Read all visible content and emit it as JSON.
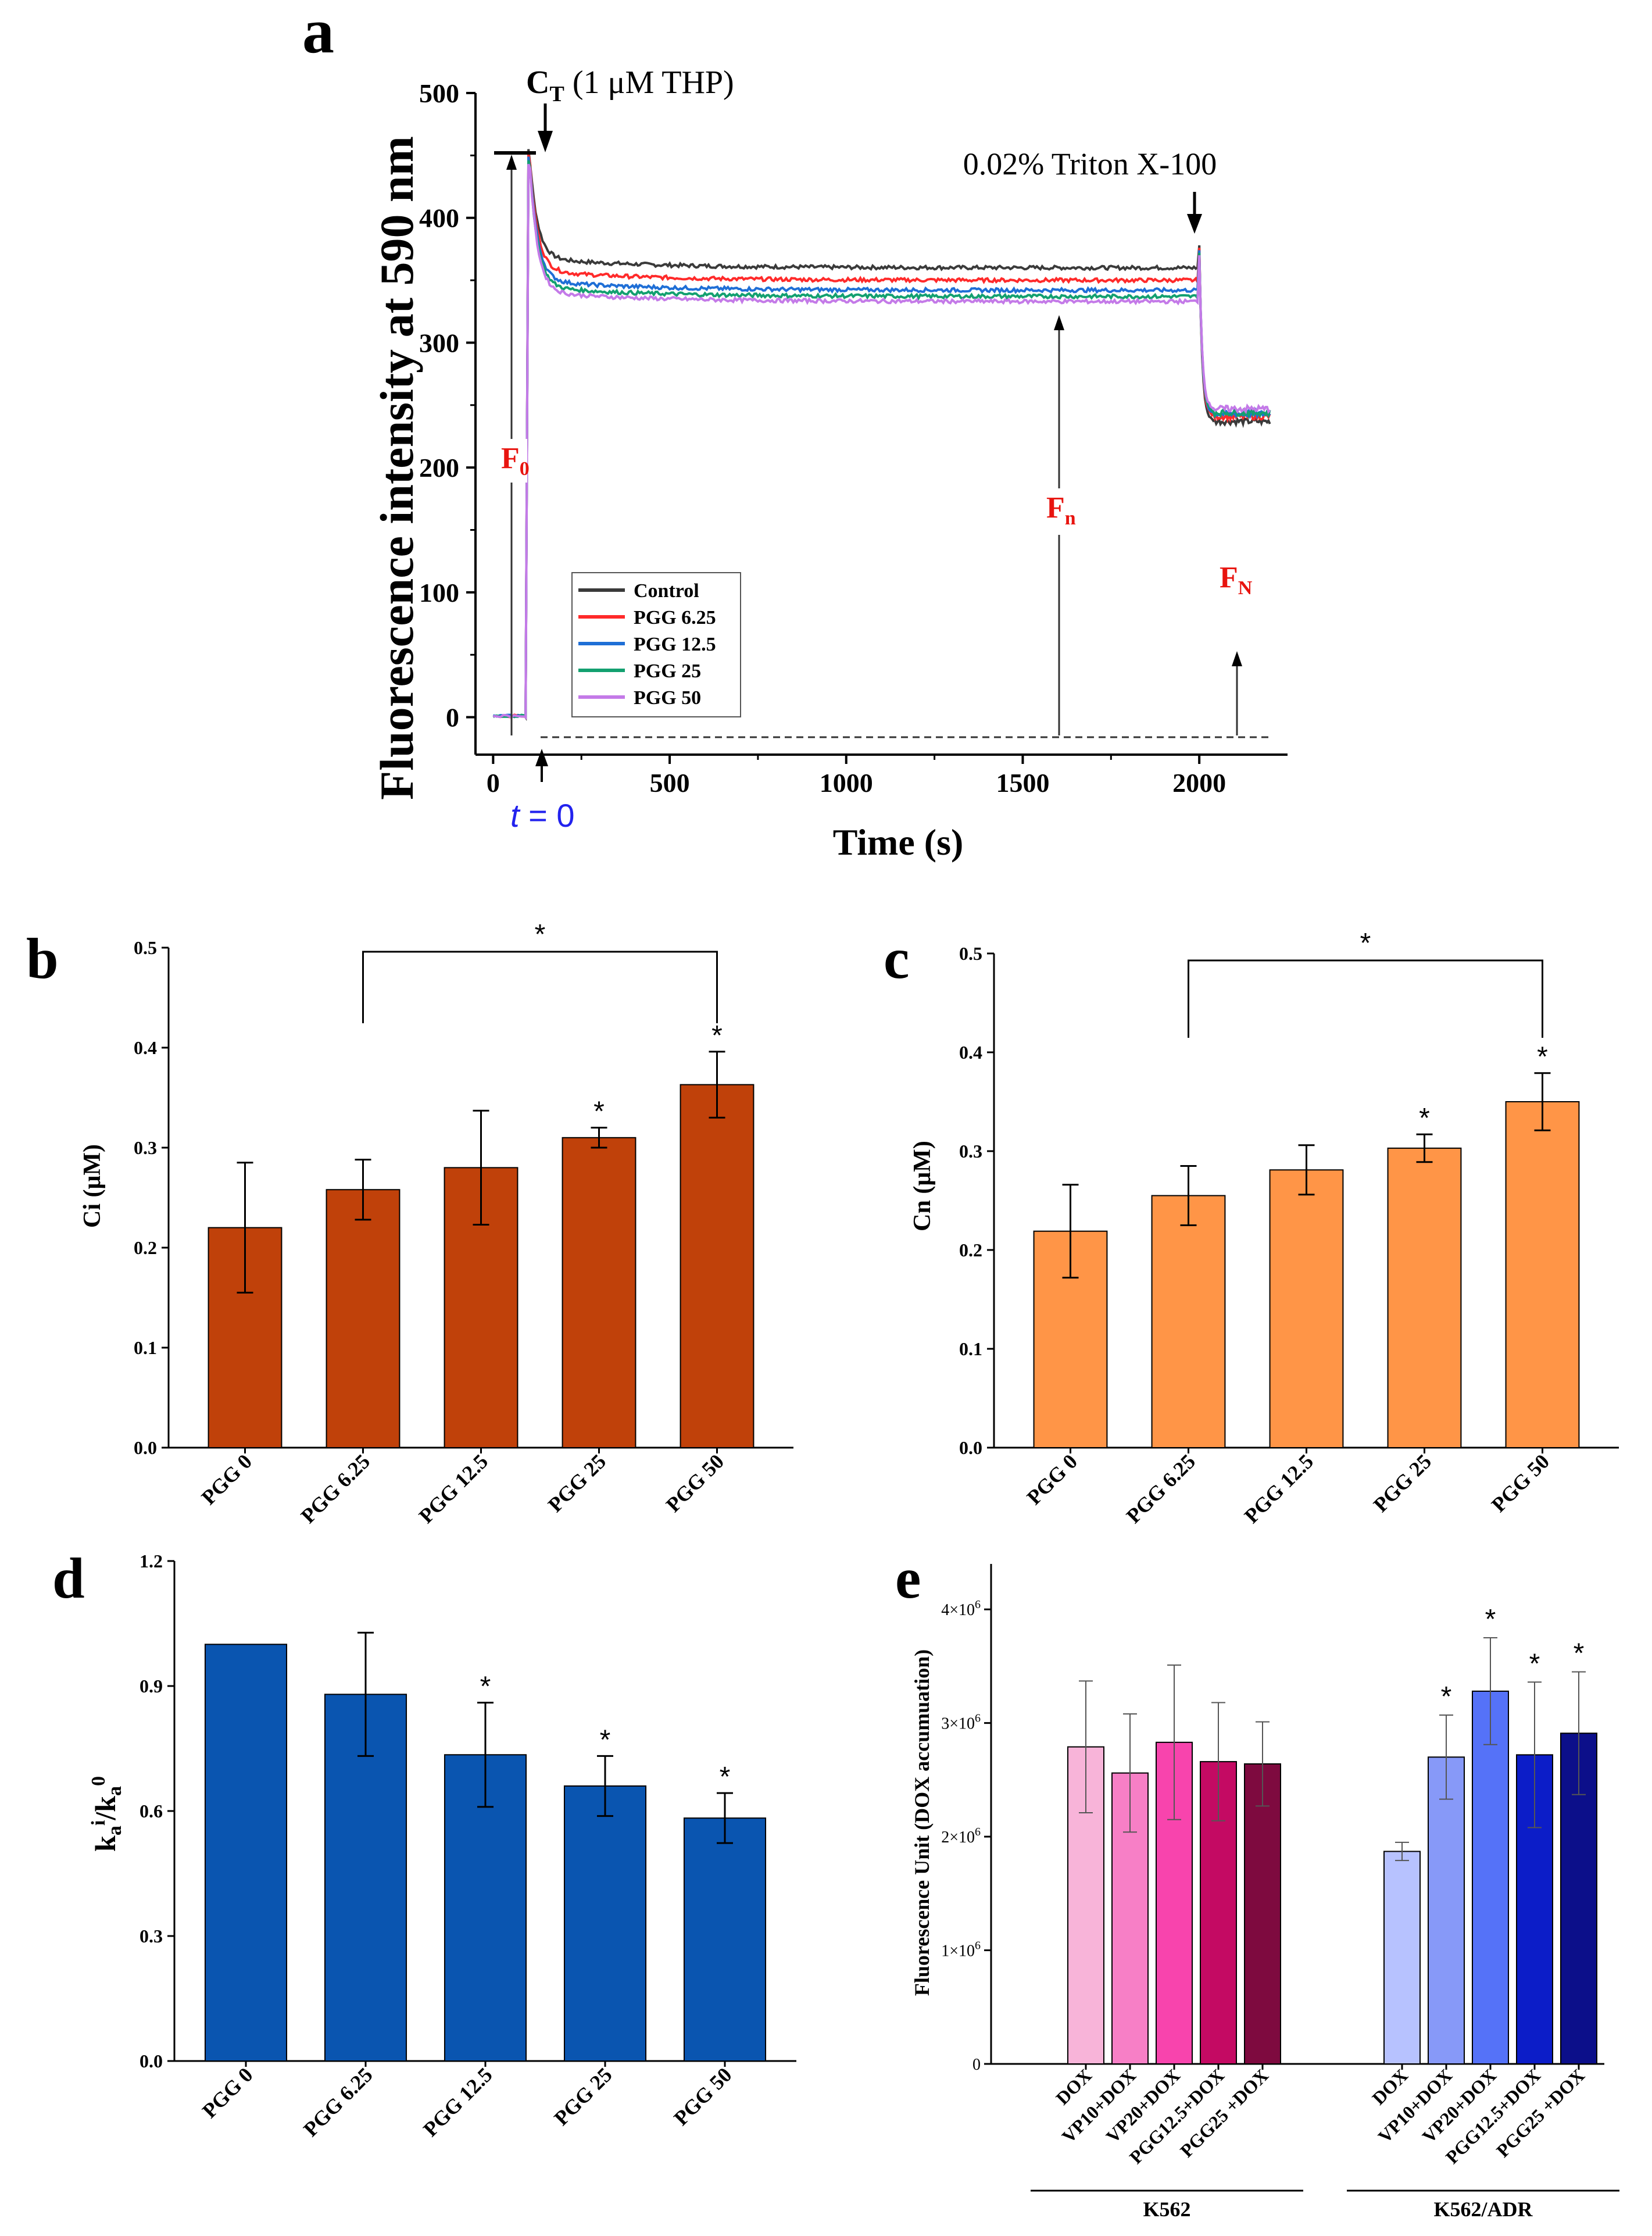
{
  "panels": {
    "a": {
      "letter": "a",
      "chart_data": {
        "type": "line",
        "xlabel": "Time (s)",
        "ylabel": "Fluorescence intensity at 590 nm",
        "xlim": [
          -50,
          2250
        ],
        "ylim": [
          -30,
          500
        ],
        "xticks": [
          0,
          500,
          1000,
          1500,
          2000
        ],
        "yticks": [
          0,
          100,
          200,
          300,
          400,
          500
        ],
        "tick_labels_x": [
          "0",
          "500",
          "1000",
          "1500",
          "2000"
        ],
        "tick_labels_y": [
          "0",
          "100",
          "200",
          "300",
          "400",
          "500"
        ],
        "series": [
          {
            "name": "Control",
            "color": "#3a3a3a",
            "plateau": 360,
            "final": 237
          },
          {
            "name": "PGG 6.25",
            "color": "#ff2a2a",
            "plateau": 350,
            "final": 241
          },
          {
            "name": "PGG 12.5",
            "color": "#1f6fd6",
            "plateau": 342,
            "final": 243
          },
          {
            "name": "PGG 25",
            "color": "#13a070",
            "plateau": 337,
            "final": 244
          },
          {
            "name": "PGG 50",
            "color": "#c47ae8",
            "plateau": 333,
            "final": 247
          }
        ],
        "peak": 455,
        "t_add_thp": 100,
        "t_add_triton": 2000,
        "t_end": 2200
      },
      "annotations": {
        "ct_main": "C",
        "ct_sub": "T",
        "ct_rest": " (1 μM THP)",
        "triton": "0.02% Triton X-100",
        "f0_main": "F",
        "f0_sub": "0",
        "fn_main": "F",
        "fn_sub": "n",
        "fN_main": "F",
        "fN_sub": "N",
        "t0_italic": "t",
        "t0_rest": " = 0"
      }
    },
    "b": {
      "letter": "b",
      "chart_data": {
        "type": "bar",
        "categories": [
          "PGG 0",
          "PGG 6.25",
          "PGG 12.5",
          "PGG  25",
          "PGG  50"
        ],
        "values": [
          0.22,
          0.258,
          0.28,
          0.31,
          0.363
        ],
        "errors": [
          0.065,
          0.03,
          0.057,
          0.01,
          0.033
        ],
        "stars": [
          "",
          "",
          "",
          "*",
          "*"
        ],
        "bracket": {
          "from": 1,
          "to": 4,
          "label": "*"
        },
        "ylabel": "Ci (μM)",
        "ylim": [
          0,
          0.5
        ],
        "yticks": [
          "0.0",
          "0.1",
          "0.2",
          "0.3",
          "0.4",
          "0.5"
        ],
        "color": "#c0410a"
      }
    },
    "c": {
      "letter": "c",
      "chart_data": {
        "type": "bar",
        "categories": [
          "PGG 0",
          "PGG 6.25",
          "PGG 12.5",
          "PGG  25",
          "PGG  50"
        ],
        "values": [
          0.219,
          0.255,
          0.281,
          0.303,
          0.35
        ],
        "errors": [
          0.047,
          0.03,
          0.025,
          0.014,
          0.029
        ],
        "stars": [
          "",
          "",
          "",
          "*",
          "*"
        ],
        "bracket": {
          "from": 1,
          "to": 4,
          "label": "*"
        },
        "ylabel": "Cn (μM)",
        "ylim": [
          0,
          0.5
        ],
        "yticks": [
          "0.0",
          "0.1",
          "0.2",
          "0.3",
          "0.4",
          "0.5"
        ],
        "color": "#ff9547"
      }
    },
    "d": {
      "letter": "d",
      "chart_data": {
        "type": "bar",
        "categories": [
          "PGG 0",
          "PGG 6.25",
          "PGG 12.5",
          "PGG  25",
          "PGG  50"
        ],
        "values": [
          1.0,
          0.88,
          0.735,
          0.66,
          0.583
        ],
        "errors": [
          0,
          0.148,
          0.125,
          0.072,
          0.06
        ],
        "stars": [
          "",
          "",
          "*",
          "*",
          "*"
        ],
        "ylabel_main": "k",
        "ylabel_sub1": "a",
        "ylabel_sup1": "i",
        "ylabel_sep": "/k",
        "ylabel_sub2": "a",
        "ylabel_sup2": "0",
        "ylim": [
          0,
          1.2
        ],
        "yticks": [
          "0.0",
          "0.3",
          "0.6",
          "0.9",
          "1.2"
        ],
        "color": "#0a55b0"
      }
    },
    "e": {
      "letter": "e",
      "chart_data": {
        "type": "bar",
        "ylabel": "Fluorescence Unit (DOX accumuation)",
        "ylim": [
          0,
          4.4
        ],
        "ytick_mantissa": [
          "0",
          "1×10",
          "2×10",
          "3×10",
          "4×10"
        ],
        "ytick_exponent": "6",
        "groups": [
          {
            "name": "K562",
            "categories": [
              "DOX",
              "VP10+DOX",
              "VP20+DOX",
              "PGG12.5+DOX",
              "PGG25 +DOX"
            ],
            "values": [
              2.79,
              2.56,
              2.83,
              2.66,
              2.64
            ],
            "errors": [
              0.58,
              0.52,
              0.68,
              0.52,
              0.37
            ],
            "stars": [
              "",
              "",
              "",
              "",
              ""
            ],
            "colors": [
              "#f8b4d9",
              "#f77fc6",
              "#f844ad",
              "#c40a63",
              "#7e0a3f"
            ]
          },
          {
            "name": "K562/ADR",
            "categories": [
              "DOX",
              "VP10+DOX",
              "VP20+DOX",
              "PGG12.5+DOX",
              "PGG25 +DOX"
            ],
            "values": [
              1.87,
              2.7,
              3.28,
              2.72,
              2.91
            ],
            "errors": [
              0.08,
              0.37,
              0.47,
              0.64,
              0.54
            ],
            "stars": [
              "",
              "*",
              "*",
              "*",
              "*"
            ],
            "colors": [
              "#b7c2ff",
              "#8799f8",
              "#5572f8",
              "#0c1dc8",
              "#0c0f8a"
            ]
          }
        ]
      }
    }
  }
}
